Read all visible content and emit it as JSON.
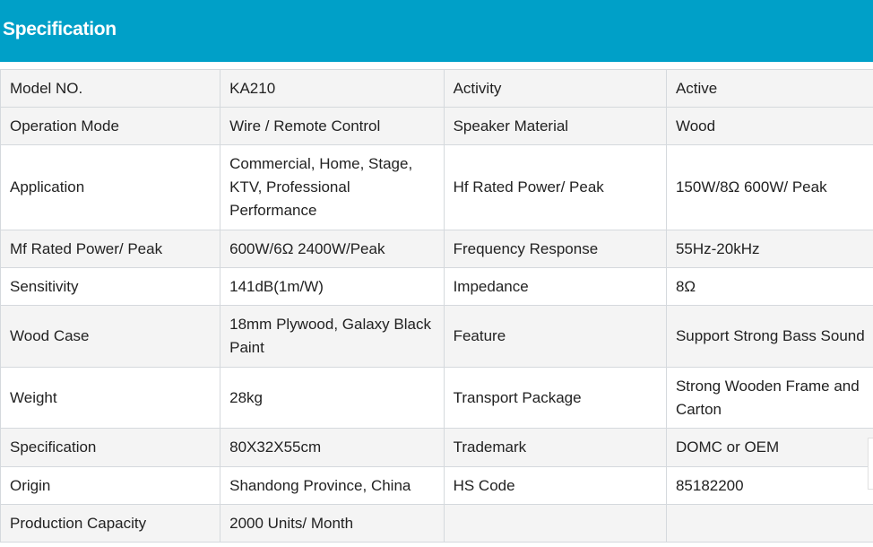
{
  "header": {
    "title": "Specification",
    "color": "#00a0c8"
  },
  "rows": [
    {
      "cells": [
        "Model NO.",
        "KA210",
        "Activity",
        "Active"
      ],
      "shade": "gray"
    },
    {
      "cells": [
        "Operation Mode",
        "Wire / Remote Control",
        "Speaker Material",
        "Wood"
      ],
      "shade": "gray"
    },
    {
      "cells": [
        "Application",
        "Commercial, Home, Stage, KTV, Professional Performance",
        "Hf Rated Power/ Peak",
        "150W/8Ω 600W/ Peak"
      ],
      "shade": "white"
    },
    {
      "cells": [
        "Mf Rated Power/ Peak",
        "600W/6Ω 2400W/Peak",
        "Frequency Response",
        "55Hz-20kHz"
      ],
      "shade": "gray"
    },
    {
      "cells": [
        "Sensitivity",
        "141dB(1m/W)",
        "Impedance",
        "8Ω"
      ],
      "shade": "white"
    },
    {
      "cells": [
        "Wood Case",
        "18mm Plywood, Galaxy Black Paint",
        "Feature",
        "Support Strong Bass Sound"
      ],
      "shade": "gray"
    },
    {
      "cells": [
        "Weight",
        "28kg",
        "Transport Package",
        "Strong Wooden Frame and Carton"
      ],
      "shade": "white"
    },
    {
      "cells": [
        "Specification",
        "80X32X55cm",
        "Trademark",
        "DOMC or OEM"
      ],
      "shade": "gray"
    },
    {
      "cells": [
        "Origin",
        "Shandong Province, China",
        "HS Code",
        "85182200"
      ],
      "shade": "white"
    },
    {
      "cells": [
        "Production Capacity",
        "2000 Units/ Month",
        "",
        ""
      ],
      "shade": "gray"
    }
  ]
}
